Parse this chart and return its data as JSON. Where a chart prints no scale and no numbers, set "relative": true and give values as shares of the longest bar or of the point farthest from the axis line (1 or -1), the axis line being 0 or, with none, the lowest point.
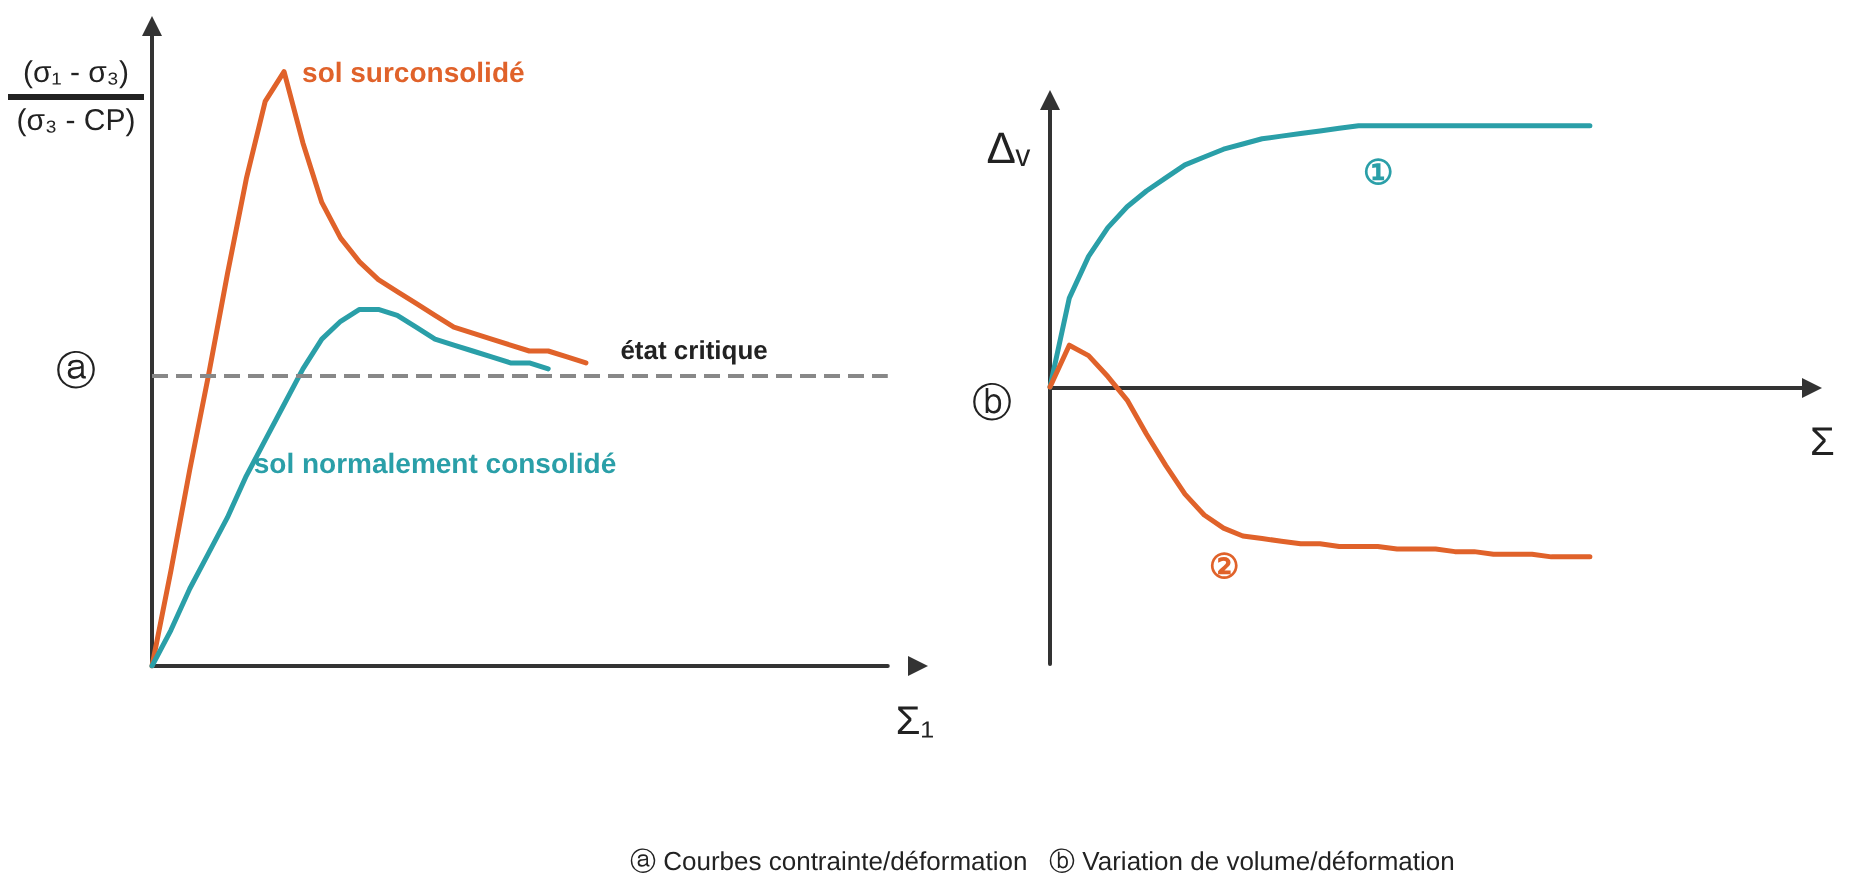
{
  "chart_data": [
    {
      "type": "line",
      "relative": true,
      "ylabel": "(σ₁ - σ₃)\n(σ₃ - CP)",
      "xlabel": "Σ₁",
      "grid": false,
      "marker": "none",
      "legend": false,
      "categories": [
        null,
        null,
        null,
        null,
        null,
        null,
        null,
        null,
        null,
        null,
        null,
        null,
        null,
        null,
        null,
        null,
        null,
        null,
        null,
        null,
        null,
        null,
        null,
        null,
        null,
        null,
        null,
        null,
        null,
        null,
        null,
        null,
        null,
        null,
        null,
        null,
        null,
        null,
        null,
        null
      ],
      "series": [
        {
          "name": "sol surconsolidé",
          "color": "#e0622a",
          "line_style": "solid",
          "values": [
            0,
            0.16,
            0.33,
            0.49,
            0.66,
            0.82,
            0.95,
            1,
            0.88,
            0.78,
            0.72,
            0.68,
            0.65,
            0.63,
            0.61,
            0.59,
            0.57,
            0.56,
            0.55,
            0.54,
            0.53,
            0.53,
            0.52,
            0.51,
            null,
            null,
            null,
            null,
            null,
            null,
            null,
            null,
            null,
            null,
            null,
            null,
            null,
            null,
            null,
            null
          ]
        },
        {
          "name": "sol normalement consolidé",
          "color": "#2a9fa8",
          "line_style": "solid",
          "values": [
            0,
            0.06,
            0.13,
            0.19,
            0.25,
            0.32,
            0.38,
            0.44,
            0.5,
            0.55,
            0.58,
            0.6,
            0.6,
            0.59,
            0.57,
            0.55,
            0.54,
            0.53,
            0.52,
            0.51,
            0.51,
            0.5,
            null,
            null,
            null,
            null,
            null,
            null,
            null,
            null,
            null,
            null,
            null,
            null,
            null,
            null,
            null,
            null,
            null,
            null
          ]
        }
      ],
      "ref_lines": [
        {
          "axis": "y",
          "value": 0.49,
          "label": "état critique",
          "color": "#888888",
          "line_style": "dashed"
        }
      ],
      "annotations": [
        "ⓐ",
        "ⓐ Courbes contrainte/déformation   ⓑ Variation de volume/déformation"
      ]
    },
    {
      "type": "line",
      "relative": true,
      "ylabel": "Δᵥ",
      "xlabel": "Σ",
      "grid": false,
      "marker": "none",
      "legend": false,
      "categories": [
        null,
        null,
        null,
        null,
        null,
        null,
        null,
        null,
        null,
        null,
        null,
        null,
        null,
        null,
        null,
        null,
        null,
        null,
        null,
        null,
        null,
        null,
        null,
        null,
        null,
        null,
        null,
        null,
        null,
        null,
        null,
        null,
        null,
        null,
        null,
        null,
        null,
        null,
        null,
        null
      ],
      "series": [
        {
          "name": "①",
          "color": "#2a9fa8",
          "line_style": "solid",
          "values": [
            0,
            0.34,
            0.5,
            0.61,
            0.69,
            0.75,
            0.8,
            0.85,
            0.88,
            0.91,
            0.93,
            0.95,
            0.96,
            0.97,
            0.98,
            0.99,
            1,
            1,
            1,
            1,
            1,
            1,
            1,
            1,
            1,
            1,
            1,
            1,
            1,
            null,
            null,
            null,
            null,
            null,
            null,
            null,
            null,
            null,
            null,
            null
          ]
        },
        {
          "name": "②",
          "color": "#e0622a",
          "line_style": "solid",
          "values": [
            0,
            0.16,
            0.12,
            0.04,
            -0.05,
            -0.18,
            -0.3,
            -0.41,
            -0.49,
            -0.54,
            -0.57,
            -0.58,
            -0.59,
            -0.6,
            -0.6,
            -0.61,
            -0.61,
            -0.61,
            -0.62,
            -0.62,
            -0.62,
            -0.63,
            -0.63,
            -0.64,
            -0.64,
            -0.64,
            -0.65,
            -0.65,
            -0.65,
            null,
            null,
            null,
            null,
            null,
            null,
            null,
            null,
            null,
            null,
            null
          ]
        }
      ],
      "annotations": [
        "ⓑ"
      ]
    }
  ]
}
